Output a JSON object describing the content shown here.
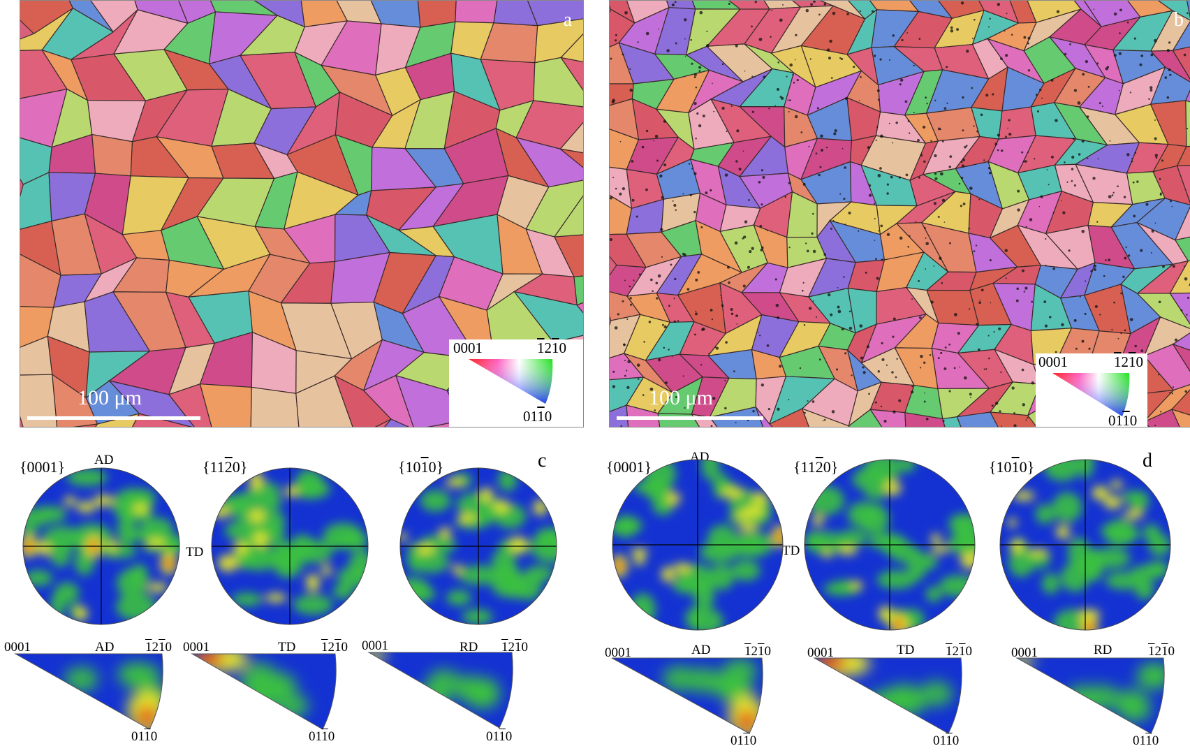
{
  "panel_a": {
    "letter": "a",
    "scale_bar": "100 μm",
    "key": {
      "corner_basal": "0001",
      "corner_prism2_bar": "1",
      "corner_prism2_mid": "2",
      "corner_prism2_bar2": "1",
      "corner_prism2_end": "0",
      "corner_prism1": "01",
      "corner_prism1_bar": "1",
      "corner_prism1_end": "0"
    }
  },
  "panel_b": {
    "letter": "b",
    "scale_bar": "100 μm",
    "key": {
      "corner_basal": "0001",
      "corner_prism2_bar": "1",
      "corner_prism2_mid": "2",
      "corner_prism2_bar2": "1",
      "corner_prism2_end": "0",
      "corner_prism1": "01",
      "corner_prism1_bar": "1",
      "corner_prism1_end": "0"
    }
  },
  "panel_c": {
    "letter": "c",
    "pole_figures": [
      {
        "title": "{0001}",
        "top_axis": "AD",
        "right_axis": "TD"
      },
      {
        "title_pre": "{11",
        "title_bar": "2",
        "title_post": "0}"
      },
      {
        "title_pre": "{10",
        "title_bar": "1",
        "title_post": "0}"
      }
    ],
    "ipfs": [
      {
        "left": "0001",
        "top": "AD",
        "right_pre": "",
        "right_bar": "1",
        "right_mid": "2",
        "right_bar2": "1",
        "right_end": "0",
        "bottom_pre": "01",
        "bottom_bar": "1",
        "bottom_end": "0"
      },
      {
        "left": "0001",
        "top": "TD",
        "right_bar": "1",
        "right_mid": "2",
        "right_bar2": "1",
        "right_end": "0",
        "bottom_pre": "01",
        "bottom_bar": "1",
        "bottom_end": "0"
      },
      {
        "left": "0001",
        "top": "RD",
        "right_bar": "1",
        "right_mid": "2",
        "right_bar2": "1",
        "right_end": "0",
        "bottom_pre": "01",
        "bottom_bar": "1",
        "bottom_end": "0"
      }
    ]
  },
  "panel_d": {
    "letter": "d",
    "pole_figures": [
      {
        "title": "{0001}",
        "top_axis": "AD",
        "right_axis": "TD"
      },
      {
        "title_pre": "{11",
        "title_bar": "2",
        "title_post": "0}"
      },
      {
        "title_pre": "{10",
        "title_bar": "1",
        "title_post": "0}"
      }
    ],
    "ipfs": [
      {
        "left": "0001",
        "top": "AD",
        "right_bar": "1",
        "right_mid": "2",
        "right_bar2": "1",
        "right_end": "0",
        "bottom_pre": "01",
        "bottom_bar": "1",
        "bottom_end": "0"
      },
      {
        "left": "0001",
        "top": "TD",
        "right_bar": "1",
        "right_mid": "2",
        "right_bar2": "1",
        "right_end": "0",
        "bottom_pre": "01",
        "bottom_bar": "1",
        "bottom_end": "0"
      },
      {
        "left": "0001",
        "top": "RD",
        "right_bar": "1",
        "right_mid": "2",
        "right_bar2": "1",
        "right_end": "0",
        "bottom_pre": "01",
        "bottom_bar": "1",
        "bottom_end": "0"
      }
    ]
  },
  "colors": {
    "pf_low": "#1432d2",
    "pf_mid": "#3cc040",
    "pf_high": "#e8e82a",
    "pf_peak": "#e0281e",
    "grain_palette": [
      "#d9586a",
      "#e0607a",
      "#d04a8a",
      "#e58a6a",
      "#f0a060",
      "#e8d060",
      "#b8e070",
      "#60d070",
      "#50c8b8",
      "#6090e0",
      "#8870e0",
      "#c070e0",
      "#e070c0",
      "#f0b0c0",
      "#e8c8a0",
      "#d86050"
    ]
  }
}
